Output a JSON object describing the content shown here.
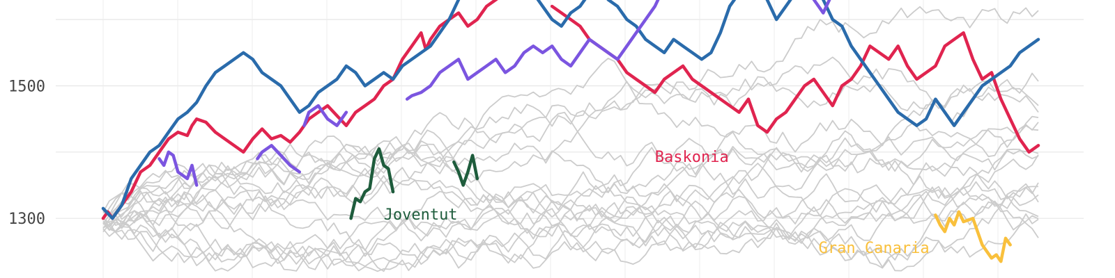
{
  "chart_data": {
    "type": "line",
    "title": "",
    "xlabel": "",
    "ylabel": "",
    "ylim": [
      1210,
      1640
    ],
    "y_ticks": [
      {
        "value": 1300,
        "label": "1300"
      },
      {
        "value": 1500,
        "label": "1500"
      }
    ],
    "grid": true,
    "background_series_color": "#cccccc",
    "highlighted_series": [
      {
        "name": "Baskonia",
        "color": "#e0244f",
        "label": {
          "text": "Baskonia",
          "x": 0.59,
          "y": 1385
        },
        "segments": [
          {
            "x": [
              0.0,
              0.005,
              0.01,
              0.02,
              0.03,
              0.04,
              0.05,
              0.06,
              0.07,
              0.08,
              0.09,
              0.095,
              0.1,
              0.11,
              0.12,
              0.13,
              0.14,
              0.15,
              0.16,
              0.17,
              0.18,
              0.19,
              0.2,
              0.21,
              0.22,
              0.23,
              0.24,
              0.25,
              0.26,
              0.27,
              0.28,
              0.29,
              0.3,
              0.31,
              0.32,
              0.33,
              0.34,
              0.345,
              0.35,
              0.36,
              0.37,
              0.38,
              0.39,
              0.4,
              0.41,
              0.42,
              0.43,
              0.44,
              0.45,
              0.46,
              0.47,
              0.475
            ],
            "y": [
              1300,
              1310,
              1300,
              1320,
              1340,
              1370,
              1380,
              1400,
              1420,
              1430,
              1425,
              1440,
              1450,
              1445,
              1430,
              1420,
              1410,
              1400,
              1420,
              1435,
              1420,
              1425,
              1415,
              1430,
              1450,
              1460,
              1470,
              1455,
              1440,
              1460,
              1470,
              1480,
              1500,
              1510,
              1540,
              1560,
              1580,
              1555,
              1570,
              1590,
              1600,
              1610,
              1590,
              1600,
              1620,
              1630,
              1640,
              1650,
              1660,
              1690,
              1670,
              1680
            ]
          },
          {
            "x": [
              0.48,
              0.49,
              0.5,
              0.51,
              0.52,
              0.53,
              0.54,
              0.55,
              0.56,
              0.57,
              0.58,
              0.585,
              0.59,
              0.6,
              0.61,
              0.62,
              0.63,
              0.64,
              0.65,
              0.66,
              0.67,
              0.68,
              0.69,
              0.7,
              0.71,
              0.72,
              0.73,
              0.74,
              0.75,
              0.76,
              0.77,
              0.78,
              0.79,
              0.8,
              0.81,
              0.82,
              0.83,
              0.84,
              0.85,
              0.86,
              0.87,
              0.88,
              0.89,
              0.9,
              0.91,
              0.92,
              0.93,
              0.94,
              0.95,
              0.96,
              0.97,
              0.98,
              0.99,
              1.0
            ],
            "y": [
              1620,
              1610,
              1600,
              1590,
              1570,
              1560,
              1550,
              1540,
              1520,
              1510,
              1500,
              1495,
              1490,
              1510,
              1520,
              1530,
              1510,
              1500,
              1490,
              1480,
              1470,
              1460,
              1480,
              1440,
              1430,
              1450,
              1460,
              1480,
              1500,
              1510,
              1490,
              1470,
              1500,
              1510,
              1530,
              1560,
              1550,
              1540,
              1560,
              1530,
              1510,
              1520,
              1530,
              1560,
              1570,
              1580,
              1540,
              1510,
              1520,
              1480,
              1450,
              1420,
              1400,
              1410
            ]
          }
        ]
      },
      {
        "name": "",
        "color": "#2a6bab",
        "segments": [
          {
            "x": [
              0.0,
              0.01,
              0.02,
              0.03,
              0.04,
              0.05,
              0.06,
              0.07,
              0.08,
              0.09,
              0.1,
              0.11,
              0.12,
              0.13,
              0.14,
              0.15,
              0.16,
              0.17,
              0.18,
              0.19,
              0.2,
              0.21,
              0.22,
              0.23,
              0.24,
              0.25,
              0.26,
              0.27,
              0.28,
              0.29,
              0.3,
              0.31,
              0.32,
              0.33,
              0.34,
              0.35,
              0.36,
              0.37,
              0.38,
              0.39,
              0.4,
              0.41,
              0.42,
              0.43,
              0.44,
              0.45,
              0.46,
              0.47,
              0.48,
              0.49,
              0.5,
              0.51,
              0.52,
              0.53,
              0.54,
              0.55,
              0.56,
              0.57,
              0.58,
              0.59,
              0.6,
              0.61,
              0.62,
              0.63,
              0.64,
              0.65,
              0.66,
              0.67,
              0.68,
              0.69,
              0.7,
              0.71,
              0.72,
              0.73,
              0.74,
              0.75,
              0.76,
              0.77,
              0.78,
              0.79,
              0.8,
              0.81,
              0.82,
              0.83,
              0.84,
              0.85,
              0.86,
              0.87,
              0.88,
              0.89,
              0.9,
              0.91,
              0.92,
              0.93,
              0.94,
              0.95,
              0.96,
              0.97,
              0.98,
              0.99,
              1.0
            ],
            "y": [
              1315,
              1300,
              1320,
              1360,
              1380,
              1400,
              1410,
              1430,
              1450,
              1460,
              1475,
              1500,
              1520,
              1530,
              1540,
              1550,
              1540,
              1520,
              1510,
              1500,
              1480,
              1460,
              1470,
              1490,
              1500,
              1510,
              1530,
              1520,
              1500,
              1510,
              1520,
              1510,
              1530,
              1540,
              1550,
              1560,
              1580,
              1600,
              1630,
              1660,
              1700,
              1720,
              1700,
              1690,
              1680,
              1660,
              1640,
              1620,
              1600,
              1590,
              1610,
              1620,
              1640,
              1650,
              1630,
              1620,
              1600,
              1590,
              1570,
              1560,
              1550,
              1570,
              1560,
              1550,
              1540,
              1550,
              1580,
              1620,
              1640,
              1660,
              1650,
              1630,
              1600,
              1620,
              1640,
              1660,
              1650,
              1630,
              1600,
              1590,
              1560,
              1540,
              1520,
              1500,
              1480,
              1460,
              1450,
              1440,
              1450,
              1480,
              1460,
              1440,
              1460,
              1480,
              1500,
              1510,
              1520,
              1530,
              1550,
              1560,
              1570
            ]
          }
        ]
      },
      {
        "name": "",
        "color": "#7b55e0",
        "segments": [
          {
            "x": [
              0.06,
              0.065,
              0.07,
              0.075,
              0.08,
              0.09,
              0.095,
              0.1
            ],
            "y": [
              1390,
              1380,
              1400,
              1395,
              1370,
              1360,
              1380,
              1350
            ]
          },
          {
            "x": [
              0.165,
              0.17,
              0.18,
              0.19,
              0.2,
              0.21
            ],
            "y": [
              1390,
              1400,
              1410,
              1395,
              1380,
              1370
            ]
          },
          {
            "x": [
              0.215,
              0.22,
              0.23,
              0.24,
              0.25,
              0.26
            ],
            "y": [
              1440,
              1460,
              1470,
              1450,
              1440,
              1460
            ]
          },
          {
            "x": [
              0.325,
              0.33,
              0.34,
              0.35,
              0.36,
              0.37,
              0.38,
              0.39,
              0.4,
              0.41,
              0.42,
              0.43,
              0.44,
              0.45,
              0.46,
              0.47,
              0.48,
              0.49,
              0.5,
              0.51,
              0.52,
              0.53,
              0.54,
              0.55,
              0.56,
              0.57,
              0.58,
              0.59,
              0.6,
              0.61,
              0.62,
              0.63,
              0.64,
              0.65,
              0.66,
              0.67,
              0.68,
              0.69,
              0.7,
              0.71,
              0.72,
              0.73,
              0.74,
              0.75,
              0.76,
              0.77,
              0.78,
              0.79,
              0.8,
              0.81,
              0.82,
              0.83,
              0.84,
              0.85,
              0.86,
              0.87,
              0.88,
              0.89,
              0.9,
              0.91,
              0.92,
              0.93,
              0.94,
              0.95,
              0.96,
              0.97,
              0.98,
              0.99,
              1.0
            ],
            "y": [
              1480,
              1485,
              1490,
              1500,
              1520,
              1530,
              1540,
              1510,
              1520,
              1530,
              1540,
              1520,
              1530,
              1550,
              1560,
              1550,
              1560,
              1540,
              1530,
              1550,
              1570,
              1560,
              1550,
              1540,
              1560,
              1580,
              1600,
              1620,
              1650,
              1670,
              1690,
              1700,
              1720,
              1740,
              1760,
              1780,
              1800,
              1780,
              1760,
              1740,
              1720,
              1700,
              1690,
              1660,
              1630,
              1610,
              1640,
              1660,
              1680,
              1700,
              1720,
              1710,
              1700,
              1690,
              1680,
              1670,
              1680,
              1690,
              1700,
              1710,
              1720,
              1730,
              1740,
              1750,
              1760,
              1770,
              1780,
              1790,
              1800
            ]
          }
        ]
      },
      {
        "name": "Joventut",
        "color": "#1e5c3c",
        "label": {
          "text": "Joventut",
          "x": 0.3,
          "y": 1298
        },
        "segments": [
          {
            "x": [
              0.265,
              0.27,
              0.275,
              0.28,
              0.285,
              0.29,
              0.295,
              0.3,
              0.305,
              0.31
            ],
            "y": [
              1300,
              1330,
              1325,
              1340,
              1345,
              1390,
              1405,
              1380,
              1375,
              1340
            ]
          },
          {
            "x": [
              0.375,
              0.38,
              0.385,
              0.39,
              0.395,
              0.4
            ],
            "y": [
              1385,
              1370,
              1350,
              1370,
              1395,
              1360
            ]
          }
        ]
      },
      {
        "name": "Gran Canaria",
        "color": "#f9c03c",
        "label": {
          "text": "Gran Canaria",
          "x": 0.765,
          "y": 1248
        },
        "segments": [
          {
            "x": [
              0.89,
              0.895,
              0.9,
              0.905,
              0.91,
              0.915,
              0.92,
              0.93,
              0.935,
              0.94,
              0.945,
              0.95,
              0.955,
              0.96,
              0.965,
              0.97
            ],
            "y": [
              1305,
              1290,
              1280,
              1300,
              1290,
              1310,
              1295,
              1300,
              1280,
              1260,
              1250,
              1240,
              1245,
              1235,
              1270,
              1260
            ]
          }
        ]
      }
    ]
  }
}
